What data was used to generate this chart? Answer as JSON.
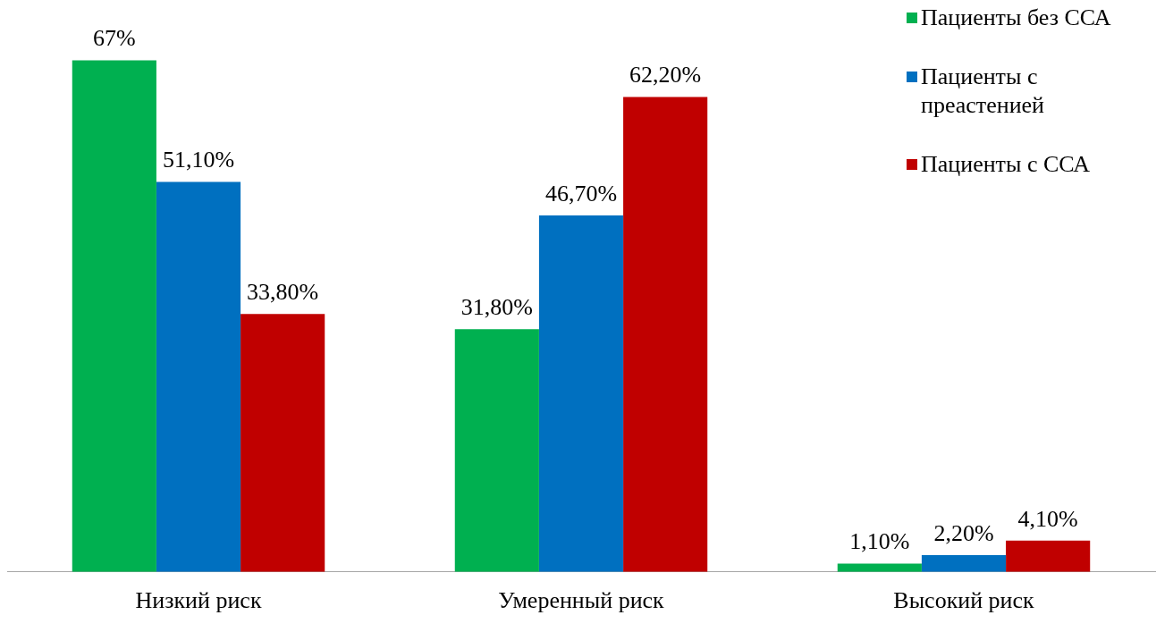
{
  "chart_data": {
    "type": "bar",
    "categories": [
      "Низкий риск",
      "Умеренный риск",
      "Высокий риск"
    ],
    "series": [
      {
        "name": "Пациенты без ССА",
        "color": "#00b050",
        "values": [
          67,
          31.8,
          1.1
        ],
        "value_labels": [
          "67%",
          "31,80%",
          "1,10%"
        ]
      },
      {
        "name": "Пациенты с преастенией",
        "color": "#0070c0",
        "values": [
          51.1,
          46.7,
          2.2
        ],
        "value_labels": [
          "51,10%",
          "46,70%",
          "2,20%"
        ]
      },
      {
        "name": "Пациенты с ССА",
        "color": "#c00000",
        "values": [
          33.8,
          62.2,
          4.1
        ],
        "value_labels": [
          "33,80%",
          "62,20%",
          "4,10%"
        ]
      }
    ],
    "legend": "top right",
    "grid": false
  }
}
